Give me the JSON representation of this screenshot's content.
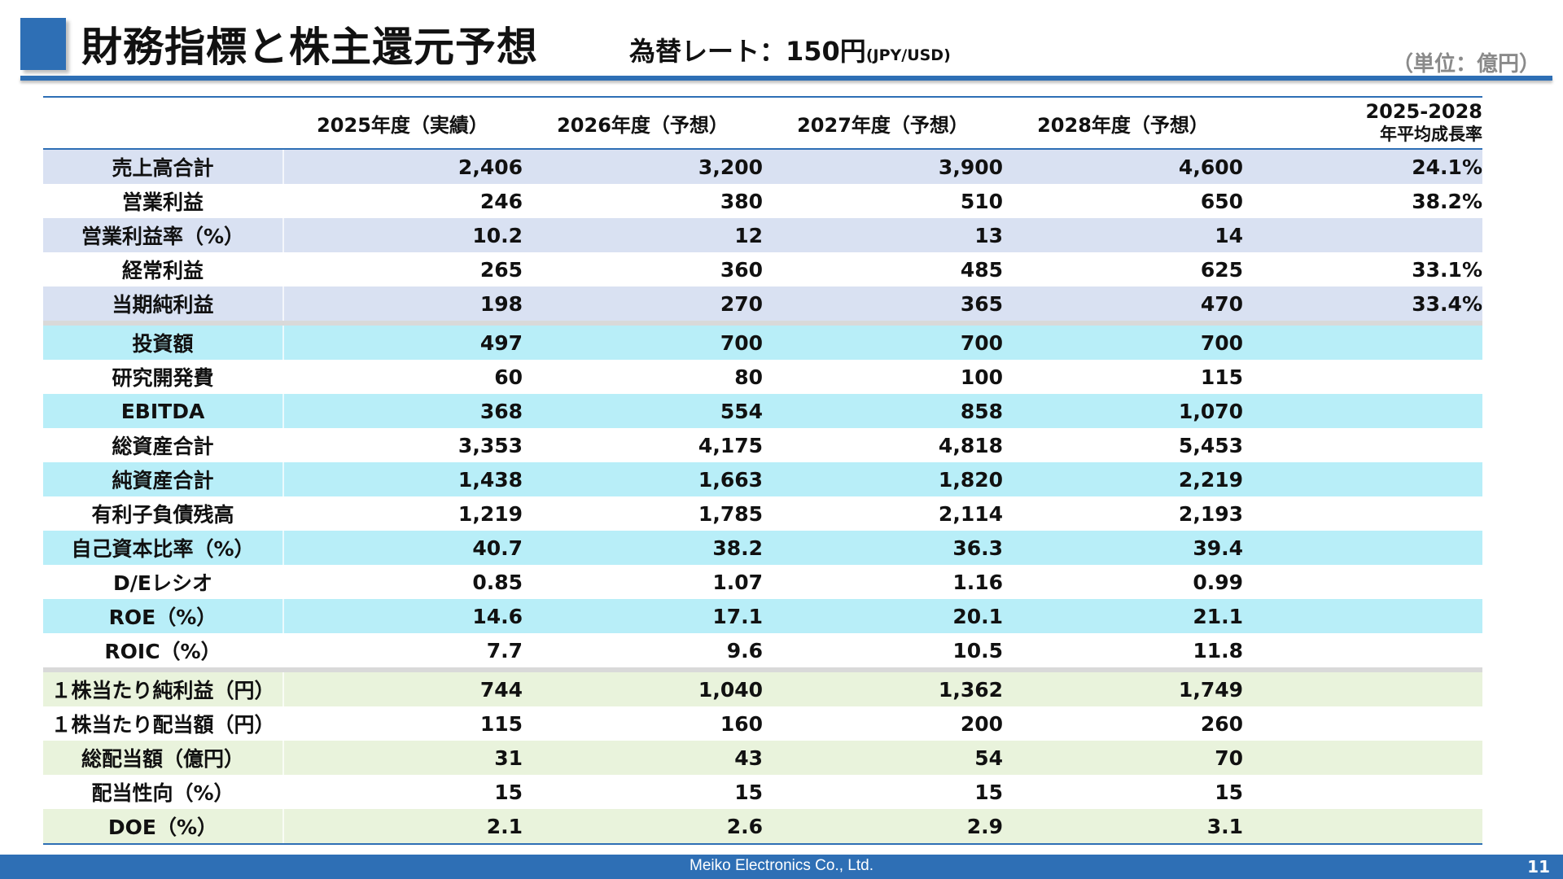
{
  "header": {
    "title": "財務指標と株主還元予想",
    "fx_label": "為替レート：150円",
    "fx_unit": "(JPY/USD)",
    "unit_note": "（単位：億円）"
  },
  "table": {
    "columns": [
      "2025年度（実績）",
      "2026年度（予想）",
      "2027年度（予想）",
      "2028年度（予想）"
    ],
    "cagr_header": [
      "2025-2028",
      "年平均成長率"
    ],
    "group1": [
      {
        "label": "売上高合計",
        "values": [
          "2,406",
          "3,200",
          "3,900",
          "4,600"
        ],
        "cagr": "24.1%"
      },
      {
        "label": "営業利益",
        "values": [
          "246",
          "380",
          "510",
          "650"
        ],
        "cagr": "38.2%"
      },
      {
        "label": "営業利益率（%）",
        "values": [
          "10.2",
          "12",
          "13",
          "14"
        ],
        "cagr": ""
      },
      {
        "label": "経常利益",
        "values": [
          "265",
          "360",
          "485",
          "625"
        ],
        "cagr": "33.1%"
      },
      {
        "label": "当期純利益",
        "values": [
          "198",
          "270",
          "365",
          "470"
        ],
        "cagr": "33.4%"
      }
    ],
    "group2": [
      {
        "label": "投資額",
        "values": [
          "497",
          "700",
          "700",
          "700"
        ],
        "cagr": ""
      },
      {
        "label": "研究開発費",
        "values": [
          "60",
          "80",
          "100",
          "115"
        ],
        "cagr": ""
      },
      {
        "label": "EBITDA",
        "values": [
          "368",
          "554",
          "858",
          "1,070"
        ],
        "cagr": ""
      },
      {
        "label": "総資産合計",
        "values": [
          "3,353",
          "4,175",
          "4,818",
          "5,453"
        ],
        "cagr": ""
      },
      {
        "label": "純資産合計",
        "values": [
          "1,438",
          "1,663",
          "1,820",
          "2,219"
        ],
        "cagr": ""
      },
      {
        "label": "有利子負債残高",
        "values": [
          "1,219",
          "1,785",
          "2,114",
          "2,193"
        ],
        "cagr": ""
      },
      {
        "label": "自己資本比率（%）",
        "values": [
          "40.7",
          "38.2",
          "36.3",
          "39.4"
        ],
        "cagr": ""
      },
      {
        "label": "D/Eレシオ",
        "values": [
          "0.85",
          "1.07",
          "1.16",
          "0.99"
        ],
        "cagr": ""
      },
      {
        "label": "ROE（%）",
        "values": [
          "14.6",
          "17.1",
          "20.1",
          "21.1"
        ],
        "cagr": ""
      },
      {
        "label": "ROIC（%）",
        "values": [
          "7.7",
          "9.6",
          "10.5",
          "11.8"
        ],
        "cagr": ""
      }
    ],
    "group3": [
      {
        "label": "１株当たり純利益（円）",
        "values": [
          "744",
          "1,040",
          "1,362",
          "1,749"
        ],
        "cagr": ""
      },
      {
        "label": "１株当たり配当額（円）",
        "values": [
          "115",
          "160",
          "200",
          "260"
        ],
        "cagr": ""
      },
      {
        "label": "総配当額（億円）",
        "values": [
          "31",
          "43",
          "54",
          "70"
        ],
        "cagr": ""
      },
      {
        "label": "配当性向（%）",
        "values": [
          "15",
          "15",
          "15",
          "15"
        ],
        "cagr": ""
      },
      {
        "label": "DOE（%）",
        "values": [
          "2.1",
          "2.6",
          "2.9",
          "3.1"
        ],
        "cagr": ""
      }
    ]
  },
  "footer": {
    "company": "Meiko Electronics Co., Ltd.",
    "page": "11"
  },
  "colors": {
    "accent": "#2e6fb5",
    "band_group1": "#d9e1f2",
    "band_group2": "#b8eef8",
    "band_group3": "#e9f3dc"
  }
}
